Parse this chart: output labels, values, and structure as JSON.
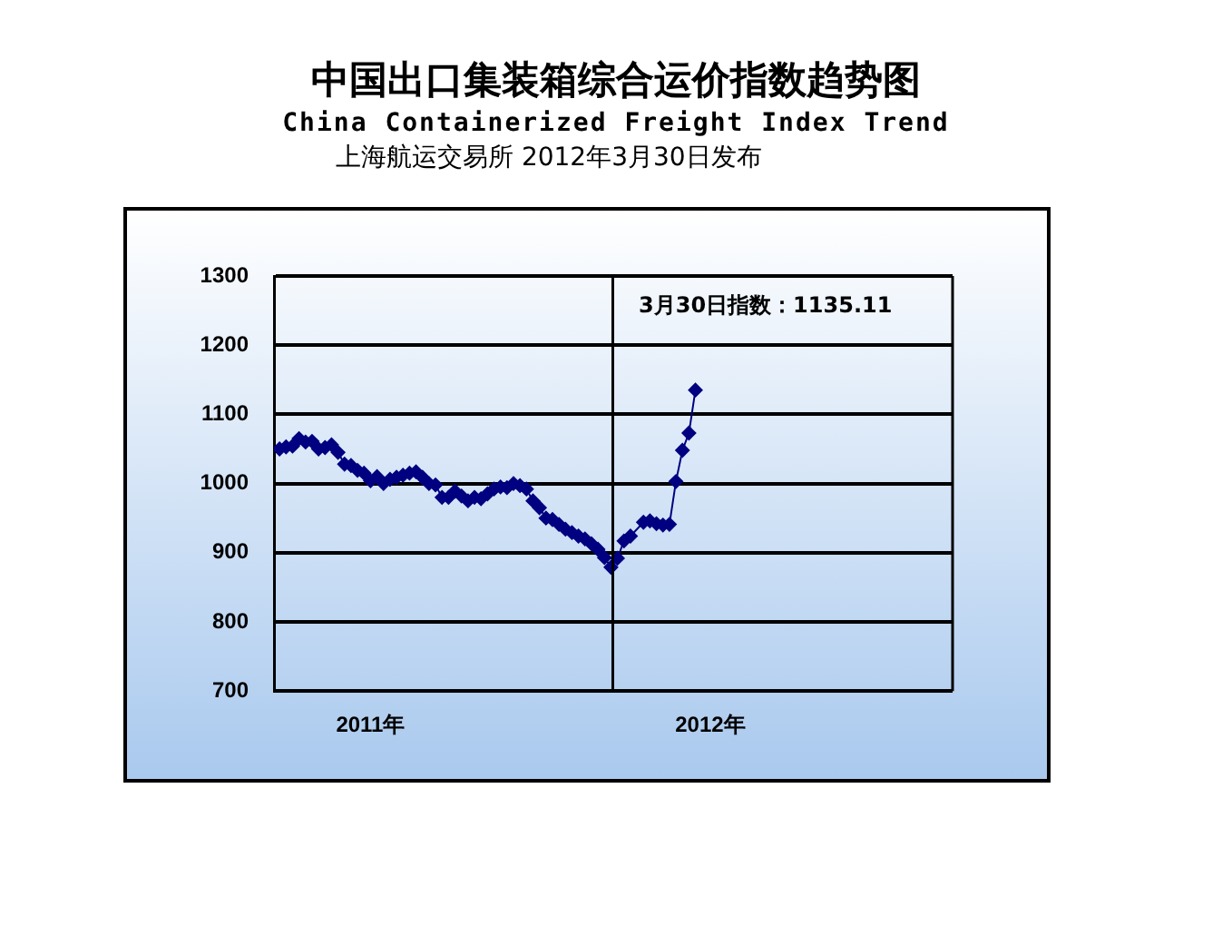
{
  "chart_data": {
    "type": "line",
    "title": "中国出口集装箱综合运价指数趋势图",
    "subtitle": "China Containerized Freight Index Trend",
    "annotations": [
      "上海航运交易所 2012年3月30日发布",
      "3月30日指数：1135.11"
    ],
    "x": [
      "2011-01-07",
      "2011-01-14",
      "2011-01-21",
      "2011-01-28",
      "2011-02-04",
      "2011-02-11",
      "2011-02-18",
      "2011-02-25",
      "2011-03-04",
      "2011-03-11",
      "2011-03-18",
      "2011-03-25",
      "2011-04-01",
      "2011-04-08",
      "2011-04-15",
      "2011-04-22",
      "2011-04-29",
      "2011-05-06",
      "2011-05-13",
      "2011-05-20",
      "2011-05-27",
      "2011-06-03",
      "2011-06-10",
      "2011-06-17",
      "2011-06-24",
      "2011-07-01",
      "2011-07-08",
      "2011-07-15",
      "2011-07-22",
      "2011-07-29",
      "2011-08-05",
      "2011-08-12",
      "2011-08-19",
      "2011-08-26",
      "2011-09-02",
      "2011-09-09",
      "2011-09-16",
      "2011-09-23",
      "2011-09-30",
      "2011-10-07",
      "2011-10-14",
      "2011-10-21",
      "2011-10-28",
      "2011-11-04",
      "2011-11-11",
      "2011-11-18",
      "2011-11-25",
      "2011-12-02",
      "2011-12-09",
      "2011-12-16",
      "2011-12-23",
      "2011-12-30",
      "2012-01-06",
      "2012-01-13",
      "2012-01-20",
      "2012-02-03",
      "2012-02-10",
      "2012-02-17",
      "2012-02-24",
      "2012-03-02",
      "2012-03-09",
      "2012-03-16",
      "2012-03-23",
      "2012-03-30"
    ],
    "series": [
      {
        "color": "#000080",
        "values": [
          1050,
          1053,
          1054,
          1065,
          1060,
          1061,
          1050,
          1052,
          1056,
          1045,
          1028,
          1026,
          1019,
          1015,
          1004,
          1010,
          1000,
          1006,
          1009,
          1012,
          1015,
          1017,
          1009,
          1000,
          998,
          980,
          980,
          989,
          982,
          975,
          980,
          978,
          985,
          992,
          995,
          994,
          1000,
          997,
          992,
          975,
          965,
          950,
          948,
          941,
          934,
          929,
          924,
          920,
          913,
          905,
          893,
          879,
          892,
          917,
          924,
          944,
          946,
          942,
          940,
          941,
          1003,
          1048,
          1073,
          1135.11
        ]
      }
    ],
    "xlim": [
      "2011-01-01",
      "2013-01-01"
    ],
    "xticks": [
      {
        "value": "2011-04-15",
        "label": "2011年"
      },
      {
        "value": "2012-04-15",
        "label": "2012年"
      }
    ],
    "ylim": [
      700,
      1300
    ],
    "yticks": [
      700,
      800,
      900,
      1000,
      1100,
      1200,
      1300
    ],
    "ref_lines": [
      {
        "axis": "x",
        "value": "2012-01-01",
        "color": "#000000",
        "line_style": "solid"
      }
    ],
    "grid": "y",
    "legend": false,
    "marker": "diamond",
    "line_style": "solid"
  }
}
